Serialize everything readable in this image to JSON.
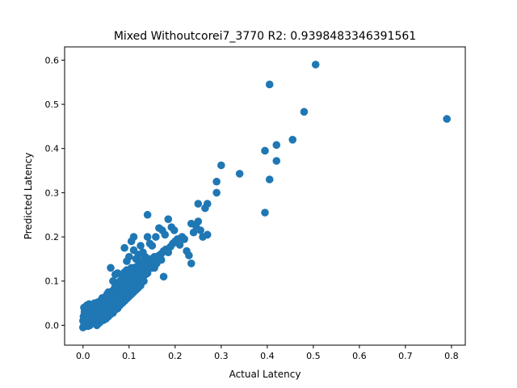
{
  "chart_data": {
    "type": "scatter",
    "title": "Mixed Withoutcorei7_3770 R2: 0.9398483346391561",
    "xlabel": "Actual Latency",
    "ylabel": "Predicted Latency",
    "xlim": [
      -0.04,
      0.83
    ],
    "ylim": [
      -0.045,
      0.63
    ],
    "xticks": [
      "0.0",
      "0.1",
      "0.2",
      "0.3",
      "0.4",
      "0.5",
      "0.6",
      "0.7",
      "0.8"
    ],
    "yticks": [
      "0.0",
      "0.1",
      "0.2",
      "0.3",
      "0.4",
      "0.5",
      "0.6"
    ],
    "color": "#1f77b4",
    "grid": false,
    "series": [
      {
        "points": [
          [
            0.0,
            -0.005
          ],
          [
            0.002,
            0.0
          ],
          [
            0.003,
            0.005
          ],
          [
            0.004,
            -0.002
          ],
          [
            0.005,
            0.01
          ],
          [
            0.006,
            0.003
          ],
          [
            0.007,
            0.015
          ],
          [
            0.008,
            0.0
          ],
          [
            0.009,
            0.02
          ],
          [
            0.01,
            0.008
          ],
          [
            0.011,
            0.03
          ],
          [
            0.012,
            0.012
          ],
          [
            0.013,
            0.005
          ],
          [
            0.014,
            0.025
          ],
          [
            0.015,
            0.018
          ],
          [
            0.016,
            0.035
          ],
          [
            0.017,
            0.01
          ],
          [
            0.018,
            0.022
          ],
          [
            0.019,
            0.04
          ],
          [
            0.02,
            0.015
          ],
          [
            0.021,
            0.03
          ],
          [
            0.022,
            0.005
          ],
          [
            0.023,
            0.045
          ],
          [
            0.024,
            0.02
          ],
          [
            0.025,
            0.028
          ],
          [
            0.026,
            0.012
          ],
          [
            0.027,
            0.038
          ],
          [
            0.028,
            0.025
          ],
          [
            0.029,
            0.05
          ],
          [
            0.03,
            0.018
          ],
          [
            0.031,
            0.032
          ],
          [
            0.032,
            0.042
          ],
          [
            0.033,
            0.01
          ],
          [
            0.034,
            0.028
          ],
          [
            0.035,
            0.048
          ],
          [
            0.036,
            0.035
          ],
          [
            0.037,
            0.02
          ],
          [
            0.038,
            0.055
          ],
          [
            0.039,
            0.03
          ],
          [
            0.04,
            0.04
          ],
          [
            0.041,
            0.025
          ],
          [
            0.042,
            0.05
          ],
          [
            0.043,
            0.035
          ],
          [
            0.044,
            0.06
          ],
          [
            0.045,
            0.045
          ],
          [
            0.046,
            0.03
          ],
          [
            0.047,
            0.052
          ],
          [
            0.048,
            0.04
          ],
          [
            0.049,
            0.062
          ],
          [
            0.05,
            0.048
          ],
          [
            0.051,
            0.035
          ],
          [
            0.052,
            0.058
          ],
          [
            0.053,
            0.045
          ],
          [
            0.054,
            0.068
          ],
          [
            0.055,
            0.05
          ],
          [
            0.056,
            0.04
          ],
          [
            0.057,
            0.065
          ],
          [
            0.058,
            0.055
          ],
          [
            0.059,
            0.072
          ],
          [
            0.06,
            0.058
          ],
          [
            0.061,
            0.045
          ],
          [
            0.062,
            0.068
          ],
          [
            0.063,
            0.06
          ],
          [
            0.064,
            0.078
          ],
          [
            0.065,
            0.062
          ],
          [
            0.066,
            0.05
          ],
          [
            0.067,
            0.072
          ],
          [
            0.068,
            0.065
          ],
          [
            0.069,
            0.085
          ],
          [
            0.07,
            0.068
          ],
          [
            0.071,
            0.055
          ],
          [
            0.072,
            0.078
          ],
          [
            0.073,
            0.07
          ],
          [
            0.074,
            0.09
          ],
          [
            0.075,
            0.072
          ],
          [
            0.076,
            0.06
          ],
          [
            0.077,
            0.082
          ],
          [
            0.078,
            0.075
          ],
          [
            0.079,
            0.095
          ],
          [
            0.08,
            0.078
          ],
          [
            0.081,
            0.065
          ],
          [
            0.082,
            0.088
          ],
          [
            0.083,
            0.08
          ],
          [
            0.084,
            0.1
          ],
          [
            0.085,
            0.082
          ],
          [
            0.086,
            0.07
          ],
          [
            0.087,
            0.092
          ],
          [
            0.088,
            0.085
          ],
          [
            0.089,
            0.105
          ],
          [
            0.09,
            0.088
          ],
          [
            0.091,
            0.075
          ],
          [
            0.092,
            0.098
          ],
          [
            0.093,
            0.09
          ],
          [
            0.094,
            0.108
          ],
          [
            0.095,
            0.092
          ],
          [
            0.096,
            0.08
          ],
          [
            0.097,
            0.102
          ],
          [
            0.098,
            0.095
          ],
          [
            0.099,
            0.11
          ],
          [
            0.1,
            0.098
          ],
          [
            0.102,
            0.085
          ],
          [
            0.104,
            0.105
          ],
          [
            0.106,
            0.1
          ],
          [
            0.108,
            0.115
          ],
          [
            0.11,
            0.102
          ],
          [
            0.112,
            0.09
          ],
          [
            0.114,
            0.11
          ],
          [
            0.116,
            0.105
          ],
          [
            0.118,
            0.118
          ],
          [
            0.12,
            0.108
          ],
          [
            0.122,
            0.095
          ],
          [
            0.124,
            0.115
          ],
          [
            0.126,
            0.11
          ],
          [
            0.128,
            0.122
          ],
          [
            0.13,
            0.112
          ],
          [
            0.132,
            0.1
          ],
          [
            0.134,
            0.118
          ],
          [
            0.136,
            0.115
          ],
          [
            0.138,
            0.125
          ],
          [
            0.14,
            0.118
          ],
          [
            0.005,
            0.02
          ],
          [
            0.01,
            0.035
          ],
          [
            0.015,
            0.0
          ],
          [
            0.02,
            0.04
          ],
          [
            0.025,
            0.05
          ],
          [
            0.03,
            0.008
          ],
          [
            0.035,
            0.015
          ],
          [
            0.04,
            0.058
          ],
          [
            0.045,
            0.02
          ],
          [
            0.05,
            0.025
          ],
          [
            0.055,
            0.075
          ],
          [
            0.06,
            0.035
          ],
          [
            0.065,
            0.04
          ],
          [
            0.07,
            0.088
          ],
          [
            0.075,
            0.05
          ],
          [
            0.08,
            0.1
          ],
          [
            0.085,
            0.055
          ],
          [
            0.09,
            0.06
          ],
          [
            0.095,
            0.068
          ],
          [
            0.1,
            0.11
          ],
          [
            0.012,
            0.042
          ],
          [
            0.018,
            0.045
          ],
          [
            0.022,
            0.032
          ],
          [
            0.028,
            0.048
          ],
          [
            0.032,
            0.052
          ],
          [
            0.038,
            0.045
          ],
          [
            0.042,
            0.062
          ],
          [
            0.048,
            0.055
          ],
          [
            0.052,
            0.07
          ],
          [
            0.058,
            0.065
          ],
          [
            0.0,
            0.01
          ],
          [
            0.001,
            0.02
          ],
          [
            0.003,
            0.03
          ],
          [
            0.002,
            0.04
          ],
          [
            0.006,
            0.025
          ],
          [
            0.004,
            0.035
          ],
          [
            0.008,
            0.045
          ],
          [
            0.009,
            0.012
          ],
          [
            0.011,
            -0.002
          ],
          [
            0.013,
            0.048
          ],
          [
            0.06,
            0.13
          ],
          [
            0.065,
            0.1
          ],
          [
            0.07,
            0.115
          ],
          [
            0.075,
            0.118
          ],
          [
            0.085,
            0.112
          ],
          [
            0.09,
            0.12
          ],
          [
            0.095,
            0.125
          ],
          [
            0.105,
            0.13
          ],
          [
            0.11,
            0.125
          ],
          [
            0.115,
            0.132
          ],
          [
            0.12,
            0.135
          ],
          [
            0.125,
            0.13
          ],
          [
            0.13,
            0.14
          ],
          [
            0.135,
            0.138
          ],
          [
            0.14,
            0.145
          ],
          [
            0.145,
            0.15
          ],
          [
            0.15,
            0.148
          ],
          [
            0.155,
            0.155
          ],
          [
            0.16,
            0.152
          ],
          [
            0.165,
            0.158
          ],
          [
            0.17,
            0.162
          ],
          [
            0.175,
            0.168
          ],
          [
            0.18,
            0.172
          ],
          [
            0.185,
            0.165
          ],
          [
            0.19,
            0.178
          ],
          [
            0.195,
            0.185
          ],
          [
            0.2,
            0.19
          ],
          [
            0.205,
            0.195
          ],
          [
            0.21,
            0.182
          ],
          [
            0.215,
            0.2
          ],
          [
            0.14,
            0.2
          ],
          [
            0.145,
            0.185
          ],
          [
            0.15,
            0.18
          ],
          [
            0.158,
            0.2
          ],
          [
            0.165,
            0.22
          ],
          [
            0.172,
            0.215
          ],
          [
            0.178,
            0.205
          ],
          [
            0.185,
            0.24
          ],
          [
            0.192,
            0.222
          ],
          [
            0.198,
            0.215
          ],
          [
            0.12,
            0.16
          ],
          [
            0.125,
            0.18
          ],
          [
            0.13,
            0.165
          ],
          [
            0.135,
            0.155
          ],
          [
            0.11,
            0.17
          ],
          [
            0.105,
            0.19
          ],
          [
            0.1,
            0.155
          ],
          [
            0.095,
            0.145
          ],
          [
            0.115,
            0.15
          ],
          [
            0.128,
            0.145
          ],
          [
            0.09,
            0.175
          ],
          [
            0.11,
            0.2
          ],
          [
            0.14,
            0.25
          ],
          [
            0.13,
            0.14
          ],
          [
            0.15,
            0.13
          ],
          [
            0.16,
            0.14
          ],
          [
            0.175,
            0.11
          ],
          [
            0.155,
            0.13
          ],
          [
            0.145,
            0.135
          ],
          [
            0.17,
            0.148
          ],
          [
            0.22,
            0.195
          ],
          [
            0.225,
            0.168
          ],
          [
            0.23,
            0.158
          ],
          [
            0.235,
            0.14
          ],
          [
            0.24,
            0.21
          ],
          [
            0.245,
            0.225
          ],
          [
            0.25,
            0.235
          ],
          [
            0.255,
            0.215
          ],
          [
            0.26,
            0.2
          ],
          [
            0.27,
            0.205
          ],
          [
            0.235,
            0.23
          ],
          [
            0.25,
            0.275
          ],
          [
            0.265,
            0.265
          ],
          [
            0.27,
            0.275
          ],
          [
            0.29,
            0.3
          ],
          [
            0.29,
            0.325
          ],
          [
            0.3,
            0.362
          ],
          [
            0.34,
            0.343
          ],
          [
            0.395,
            0.255
          ],
          [
            0.395,
            0.395
          ],
          [
            0.405,
            0.33
          ],
          [
            0.42,
            0.372
          ],
          [
            0.42,
            0.408
          ],
          [
            0.455,
            0.42
          ],
          [
            0.48,
            0.483
          ],
          [
            0.405,
            0.545
          ],
          [
            0.505,
            0.59
          ],
          [
            0.79,
            0.467
          ],
          [
            0.03,
            0.0
          ],
          [
            0.035,
            0.005
          ],
          [
            0.04,
            0.01
          ],
          [
            0.045,
            0.012
          ],
          [
            0.05,
            0.015
          ],
          [
            0.055,
            0.02
          ],
          [
            0.06,
            0.025
          ],
          [
            0.065,
            0.028
          ],
          [
            0.07,
            0.035
          ],
          [
            0.075,
            0.038
          ],
          [
            0.08,
            0.045
          ],
          [
            0.085,
            0.05
          ],
          [
            0.09,
            0.055
          ],
          [
            0.095,
            0.06
          ],
          [
            0.1,
            0.065
          ],
          [
            0.105,
            0.07
          ],
          [
            0.11,
            0.075
          ],
          [
            0.115,
            0.08
          ],
          [
            0.12,
            0.085
          ],
          [
            0.125,
            0.09
          ]
        ]
      }
    ]
  }
}
